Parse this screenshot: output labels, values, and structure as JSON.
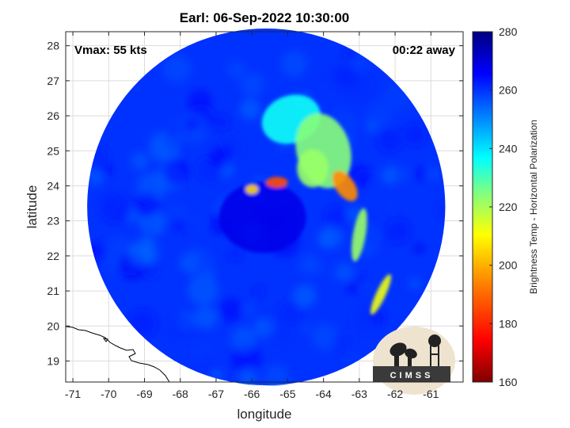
{
  "figure": {
    "title": "Earl: 06-Sep-2022 10:30:00",
    "vmax_label": "Vmax: 55 kts",
    "time_away_label": "00:22 away",
    "xlabel": "longitude",
    "ylabel": "latitude",
    "colorbar_label": "Brightness Temp - Horizontal Polarization",
    "logo_text": "CIMSS"
  },
  "chart_data": {
    "type": "heatmap",
    "title": "Earl: 06-Sep-2022 10:30:00",
    "xlabel": "longitude",
    "ylabel": "latitude",
    "xlim": [
      -71.2,
      -60.1
    ],
    "ylim": [
      18.4,
      28.4
    ],
    "xticks": [
      -71,
      -70,
      -69,
      -68,
      -67,
      -66,
      -65,
      -64,
      -63,
      -62,
      -61
    ],
    "yticks": [
      19,
      20,
      21,
      22,
      23,
      24,
      25,
      26,
      27,
      28
    ],
    "colorbar": {
      "label": "Brightness Temp - Horizontal Polarization",
      "min": 160,
      "max": 280,
      "ticks": [
        160,
        180,
        200,
        220,
        240,
        260,
        280
      ],
      "colormap": [
        "#7f0000",
        "#ff0000",
        "#ff8000",
        "#ffff00",
        "#80ff80",
        "#00ffff",
        "#0080ff",
        "#0000ff",
        "#000080"
      ]
    },
    "swath": {
      "center_lon": -65.6,
      "center_lat": 23.4,
      "radius_deg": 5.0
    },
    "storm_center": {
      "lon": -65.5,
      "lat": 23.3
    },
    "background_temp": 260,
    "features": [
      {
        "name": "eye region",
        "lon": -65.7,
        "lat": 23.1,
        "temp": 268
      },
      {
        "name": "northern band",
        "lon": -64.9,
        "lat": 25.9,
        "temp": 236
      },
      {
        "name": "band arc",
        "lon": -64.0,
        "lat": 25.0,
        "temp": 224
      },
      {
        "name": "inner band",
        "lon": -64.3,
        "lat": 24.5,
        "temp": 222
      },
      {
        "name": "eyewall north",
        "lon": -65.3,
        "lat": 24.1,
        "temp": 186
      },
      {
        "name": "eyewall west",
        "lon": -66.0,
        "lat": 23.9,
        "temp": 205
      },
      {
        "name": "eastern convection",
        "lon": -63.4,
        "lat": 24.0,
        "temp": 195
      },
      {
        "name": "spiral tail",
        "lon": -63.0,
        "lat": 22.6,
        "temp": 222
      },
      {
        "name": "outer rainband",
        "lon": -62.4,
        "lat": 20.9,
        "temp": 212
      }
    ]
  }
}
